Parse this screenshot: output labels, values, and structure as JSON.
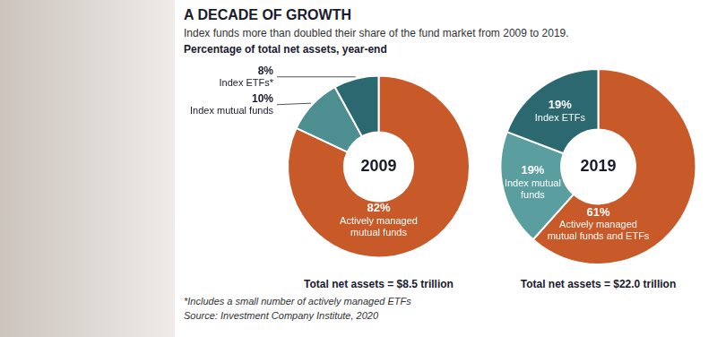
{
  "title": "A DECADE OF GROWTH",
  "subtitle": "Index funds more than doubled their share of the fund market from 2009 to 2019.",
  "annotations": [
    "Percentage of total net assets, year-end",
    "*Includes a small number of actively managed ETFs",
    "Source: Investment Company Institute, 2020"
  ],
  "chart_data": [
    {
      "type": "doughnut",
      "title": "2009",
      "categories": [
        "Actively managed mutual funds",
        "Index mutual funds",
        "Index ETFs*"
      ],
      "values": [
        82,
        10,
        8
      ],
      "value_labels": [
        "82%",
        "10%",
        "8%"
      ],
      "colors": [
        "#C85A2A",
        "#4D8E91",
        "#2B6870"
      ],
      "data_labels": true,
      "annotations": [
        "Total net assets = $8.5 trillion"
      ]
    },
    {
      "type": "doughnut",
      "title": "2019",
      "categories": [
        "Actively managed mutual funds and ETFs",
        "Index mutual funds",
        "Index ETFs"
      ],
      "values": [
        61,
        19,
        19
      ],
      "value_labels": [
        "61%",
        "19%",
        "19%"
      ],
      "colors": [
        "#C85A2A",
        "#5B9EA0",
        "#2B6870"
      ],
      "data_labels": true,
      "annotations": [
        "Total net assets = $22.0 trillion"
      ]
    }
  ]
}
